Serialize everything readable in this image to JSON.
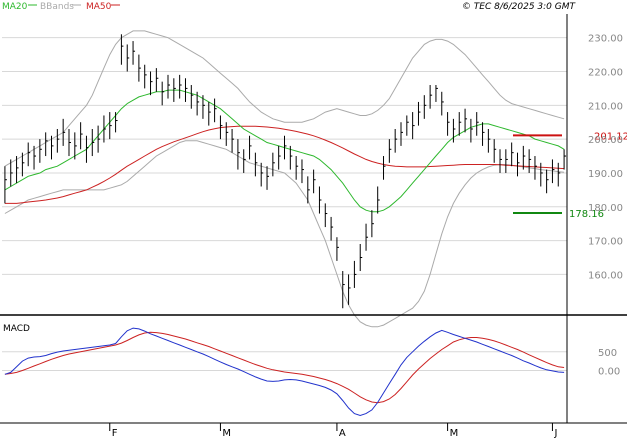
{
  "header": {
    "legend": [
      {
        "label": "MA20",
        "color": "#2eb82e"
      },
      {
        "label": "BBands",
        "color": "#aaaaaa"
      },
      {
        "label": "MA50",
        "color": "#cc2222"
      }
    ],
    "copyright": "© TEC 8/6/2025 3:0 GMT"
  },
  "levels": {
    "resistance": {
      "value": 201.12,
      "label": "201.12",
      "color": "#cc1111"
    },
    "support": {
      "value": 178.16,
      "label": "178.16",
      "color": "#118811"
    }
  },
  "colors": {
    "price_bar": "#000000",
    "ma20": "#2eb82e",
    "ma50": "#cc2222",
    "bbands": "#aaaaaa",
    "macd": "#2233cc",
    "signal": "#cc2222",
    "grid": "#d8d8d8",
    "frame": "#000000"
  },
  "chart_data": [
    {
      "type": "line",
      "panel": "price",
      "y_ticks": [
        "230.00",
        "220.00",
        "210.00",
        "200.00",
        "190.00",
        "180.00",
        "170.00",
        "160.00"
      ],
      "ylim": [
        148,
        237
      ],
      "x_tick_labels": [
        "F",
        "M",
        "A",
        "M",
        "J"
      ],
      "x_tick_positions": [
        18,
        37,
        57,
        76,
        94
      ],
      "n_bars": 97,
      "close": [
        188.0,
        190.0,
        191.5,
        193.0,
        196.0,
        195.0,
        197.0,
        199.5,
        198.0,
        200.0,
        202.0,
        199.0,
        198.0,
        201.5,
        197.5,
        199.0,
        200.0,
        203.0,
        204.0,
        205.5,
        227.5,
        224.0,
        226.0,
        221.0,
        219.0,
        217.0,
        218.0,
        214.0,
        216.0,
        215.0,
        216.0,
        215.0,
        213.0,
        211.0,
        210.0,
        208.0,
        209.0,
        204.0,
        202.0,
        200.0,
        196.0,
        194.0,
        198.0,
        193.0,
        190.0,
        189.0,
        193.0,
        195.0,
        198.0,
        195.0,
        192.0,
        191.0,
        185.0,
        188.0,
        182.0,
        178.0,
        174.0,
        168.0,
        157.0,
        156.0,
        160.0,
        165.0,
        171.0,
        175.0,
        182.0,
        192.0,
        197.0,
        200.0,
        202.0,
        205.0,
        204.0,
        208.0,
        210.0,
        213.0,
        215.0,
        211.0,
        205.0,
        203.0,
        205.0,
        206.0,
        203.0,
        205.0,
        202.0,
        200.0,
        197.0,
        194.0,
        194.0,
        196.0,
        193.0,
        195.0,
        194.0,
        192.0,
        190.0,
        188.0,
        191.0,
        190.0,
        195.0
      ],
      "high": [
        192.0,
        194.0,
        195.0,
        196.0,
        199.0,
        198.0,
        200.0,
        202.0,
        201.0,
        203.0,
        206.0,
        203.0,
        202.0,
        205.0,
        201.0,
        203.0,
        204.0,
        207.0,
        208.0,
        208.0,
        231.0,
        228.0,
        229.0,
        225.0,
        222.0,
        220.0,
        221.0,
        217.0,
        219.0,
        218.0,
        219.0,
        218.0,
        216.0,
        214.0,
        213.0,
        211.0,
        212.0,
        207.0,
        205.0,
        203.0,
        200.0,
        197.0,
        201.0,
        196.0,
        193.0,
        192.0,
        196.0,
        198.0,
        201.0,
        198.0,
        195.0,
        194.0,
        189.0,
        191.0,
        186.0,
        181.0,
        177.0,
        171.0,
        161.0,
        160.0,
        164.0,
        169.0,
        175.0,
        179.0,
        186.0,
        195.0,
        200.0,
        203.0,
        205.0,
        207.0,
        208.0,
        211.0,
        213.0,
        216.0,
        216.0,
        214.0,
        208.0,
        206.0,
        208.0,
        209.0,
        206.0,
        208.0,
        205.0,
        203.0,
        200.0,
        197.0,
        197.0,
        199.0,
        196.0,
        198.0,
        197.0,
        195.0,
        193.0,
        191.0,
        194.0,
        193.0,
        197.0
      ],
      "low": [
        181.0,
        186.0,
        187.0,
        189.0,
        192.0,
        191.0,
        193.0,
        195.0,
        194.0,
        196.0,
        198.0,
        195.0,
        194.0,
        197.0,
        193.0,
        195.0,
        196.0,
        199.0,
        200.0,
        202.0,
        222.0,
        220.0,
        222.0,
        217.0,
        215.0,
        213.0,
        214.0,
        210.0,
        212.0,
        211.0,
        212.0,
        211.0,
        209.0,
        207.0,
        206.0,
        204.0,
        205.0,
        200.0,
        198.0,
        196.0,
        191.0,
        190.0,
        194.0,
        189.0,
        186.0,
        185.0,
        189.0,
        191.0,
        194.0,
        191.0,
        188.0,
        187.0,
        181.0,
        184.0,
        178.0,
        174.0,
        170.0,
        164.0,
        150.0,
        151.0,
        156.0,
        161.0,
        167.0,
        171.0,
        178.0,
        188.0,
        193.0,
        196.0,
        198.0,
        201.0,
        200.0,
        204.0,
        206.0,
        209.0,
        211.0,
        207.0,
        201.0,
        199.0,
        201.0,
        202.0,
        199.0,
        201.0,
        198.0,
        196.0,
        193.0,
        190.0,
        190.0,
        192.0,
        189.0,
        191.0,
        190.0,
        188.0,
        186.0,
        184.0,
        187.0,
        186.0,
        191.0
      ],
      "ma20": [
        185.0,
        186.0,
        187.0,
        188.0,
        189.0,
        189.5,
        190.0,
        191.0,
        191.5,
        192.0,
        193.0,
        194.0,
        195.0,
        196.0,
        197.0,
        199.0,
        201.0,
        203.0,
        205.0,
        207.0,
        209.0,
        210.5,
        211.5,
        212.5,
        213.0,
        213.5,
        214.0,
        214.0,
        214.5,
        214.5,
        214.5,
        214.0,
        213.5,
        213.0,
        212.0,
        211.0,
        210.0,
        209.0,
        207.5,
        206.0,
        204.5,
        203.0,
        202.0,
        201.0,
        200.0,
        199.0,
        198.5,
        198.0,
        197.5,
        197.0,
        196.5,
        196.0,
        195.5,
        195.0,
        194.0,
        192.5,
        191.0,
        189.0,
        187.0,
        184.5,
        182.0,
        180.0,
        179.0,
        178.5,
        178.5,
        179.0,
        180.0,
        181.5,
        183.0,
        185.0,
        187.0,
        189.0,
        191.0,
        193.0,
        195.0,
        197.0,
        199.0,
        200.5,
        201.5,
        202.5,
        203.5,
        204.0,
        204.5,
        204.5,
        204.0,
        203.5,
        203.0,
        202.5,
        202.0,
        201.5,
        201.0,
        200.0,
        199.5,
        199.0,
        198.5,
        198.0,
        197.0
      ],
      "ma50": [
        181.0,
        181.0,
        181.0,
        181.2,
        181.4,
        181.6,
        181.8,
        182.0,
        182.3,
        182.6,
        183.0,
        183.5,
        184.0,
        184.5,
        185.0,
        185.8,
        186.6,
        187.5,
        188.5,
        189.6,
        190.8,
        192.0,
        193.0,
        194.0,
        195.0,
        196.0,
        197.0,
        197.8,
        198.5,
        199.2,
        199.8,
        200.4,
        201.0,
        201.6,
        202.2,
        202.7,
        203.1,
        203.4,
        203.6,
        203.7,
        203.8,
        203.8,
        203.8,
        203.8,
        203.7,
        203.6,
        203.4,
        203.2,
        202.9,
        202.6,
        202.3,
        201.9,
        201.5,
        201.0,
        200.4,
        199.7,
        199.0,
        198.2,
        197.4,
        196.5,
        195.6,
        194.8,
        194.0,
        193.4,
        192.9,
        192.5,
        192.2,
        192.0,
        191.9,
        191.8,
        191.8,
        191.8,
        191.8,
        191.9,
        192.0,
        192.1,
        192.2,
        192.3,
        192.4,
        192.5,
        192.5,
        192.5,
        192.5,
        192.5,
        192.5,
        192.4,
        192.3,
        192.2,
        192.1,
        192.0,
        191.9,
        191.8,
        191.7,
        191.6,
        191.5,
        191.4,
        191.3
      ],
      "bb_upper": [
        192.0,
        193.0,
        194.0,
        195.0,
        196.0,
        197.0,
        198.0,
        199.0,
        200.0,
        201.0,
        202.0,
        204.0,
        206.0,
        208.0,
        210.0,
        213.0,
        217.0,
        221.0,
        225.0,
        228.0,
        230.0,
        231.0,
        232.0,
        232.0,
        232.0,
        231.5,
        231.0,
        230.5,
        230.0,
        229.0,
        228.0,
        227.0,
        226.0,
        225.0,
        224.0,
        222.5,
        221.0,
        219.5,
        218.0,
        216.5,
        215.0,
        213.0,
        211.0,
        209.5,
        208.0,
        207.0,
        206.0,
        205.5,
        205.0,
        205.0,
        205.0,
        205.0,
        205.5,
        206.0,
        207.0,
        208.0,
        208.5,
        209.0,
        208.5,
        208.0,
        207.5,
        207.0,
        207.0,
        207.5,
        208.5,
        210.0,
        212.0,
        215.0,
        218.0,
        221.0,
        224.0,
        226.0,
        228.0,
        229.0,
        229.5,
        229.5,
        229.0,
        228.0,
        226.5,
        225.0,
        223.0,
        221.0,
        219.0,
        217.0,
        215.0,
        213.0,
        211.5,
        210.5,
        210.0,
        209.5,
        209.0,
        208.5,
        208.0,
        207.5,
        207.0,
        206.5,
        206.0
      ],
      "bb_lower": [
        178.0,
        179.0,
        180.0,
        181.0,
        182.0,
        182.5,
        183.0,
        183.5,
        184.0,
        184.5,
        185.0,
        185.0,
        185.0,
        185.0,
        185.0,
        185.0,
        185.0,
        185.0,
        185.5,
        186.0,
        186.5,
        187.5,
        189.0,
        190.5,
        192.0,
        193.5,
        195.0,
        196.0,
        197.0,
        198.0,
        199.0,
        199.5,
        199.5,
        199.5,
        199.0,
        198.5,
        198.0,
        197.5,
        197.0,
        196.0,
        195.0,
        194.0,
        193.0,
        192.5,
        192.0,
        191.5,
        191.0,
        190.5,
        190.0,
        188.5,
        187.0,
        184.5,
        182.0,
        178.0,
        174.0,
        170.0,
        165.0,
        160.0,
        155.0,
        151.0,
        148.0,
        146.0,
        145.0,
        144.5,
        144.5,
        145.0,
        146.0,
        147.0,
        148.0,
        149.0,
        150.0,
        152.0,
        155.0,
        160.0,
        166.0,
        172.0,
        177.0,
        181.0,
        184.0,
        186.5,
        188.5,
        190.0,
        191.0,
        191.8,
        192.3,
        192.5,
        192.5,
        192.3,
        192.0,
        191.8,
        191.5,
        191.3,
        191.0,
        190.8,
        190.6,
        190.4,
        190.2
      ]
    },
    {
      "type": "line",
      "panel": "macd",
      "title": "MACD",
      "y_ticks": [
        "500",
        "0.00"
      ],
      "ylim": [
        -1400,
        1400
      ],
      "x_tick_labels": [
        "F",
        "M",
        "A",
        "M",
        "J"
      ],
      "x_tick_positions": [
        18,
        37,
        57,
        76,
        94
      ],
      "series": [
        {
          "values": [
            -100,
            -50,
            100,
            250,
            330,
            360,
            370,
            400,
            450,
            490,
            520,
            540,
            560,
            580,
            600,
            620,
            640,
            660,
            680,
            720,
            900,
            1060,
            1130,
            1110,
            1050,
            980,
            920,
            860,
            800,
            740,
            680,
            620,
            560,
            500,
            440,
            370,
            300,
            230,
            160,
            100,
            40,
            -30,
            -100,
            -170,
            -230,
            -280,
            -290,
            -280,
            -250,
            -240,
            -250,
            -280,
            -320,
            -360,
            -400,
            -450,
            -520,
            -620,
            -800,
            -1000,
            -1150,
            -1200,
            -1150,
            -1050,
            -850,
            -600,
            -350,
            -100,
            150,
            350,
            500,
            650,
            780,
            900,
            1000,
            1070,
            1020,
            960,
            910,
            860,
            810,
            760,
            700,
            640,
            580,
            520,
            460,
            400,
            330,
            260,
            200,
            130,
            70,
            20,
            -10,
            -40,
            -50
          ]
        },
        {
          "values": [
            -100,
            -80,
            -50,
            0,
            60,
            120,
            180,
            240,
            300,
            350,
            400,
            440,
            470,
            500,
            530,
            560,
            590,
            620,
            650,
            680,
            730,
            800,
            880,
            950,
            1000,
            1020,
            1010,
            990,
            960,
            920,
            880,
            840,
            790,
            740,
            690,
            640,
            580,
            520,
            460,
            400,
            340,
            280,
            220,
            160,
            110,
            60,
            20,
            -10,
            -40,
            -60,
            -80,
            -100,
            -130,
            -160,
            -200,
            -240,
            -290,
            -350,
            -420,
            -500,
            -600,
            -700,
            -780,
            -840,
            -860,
            -830,
            -760,
            -640,
            -480,
            -300,
            -120,
            40,
            180,
            320,
            440,
            560,
            660,
            760,
            820,
            860,
            880,
            880,
            860,
            830,
            790,
            740,
            680,
            620,
            560,
            490,
            420,
            350,
            280,
            210,
            150,
            100,
            80
          ]
        }
      ]
    }
  ]
}
